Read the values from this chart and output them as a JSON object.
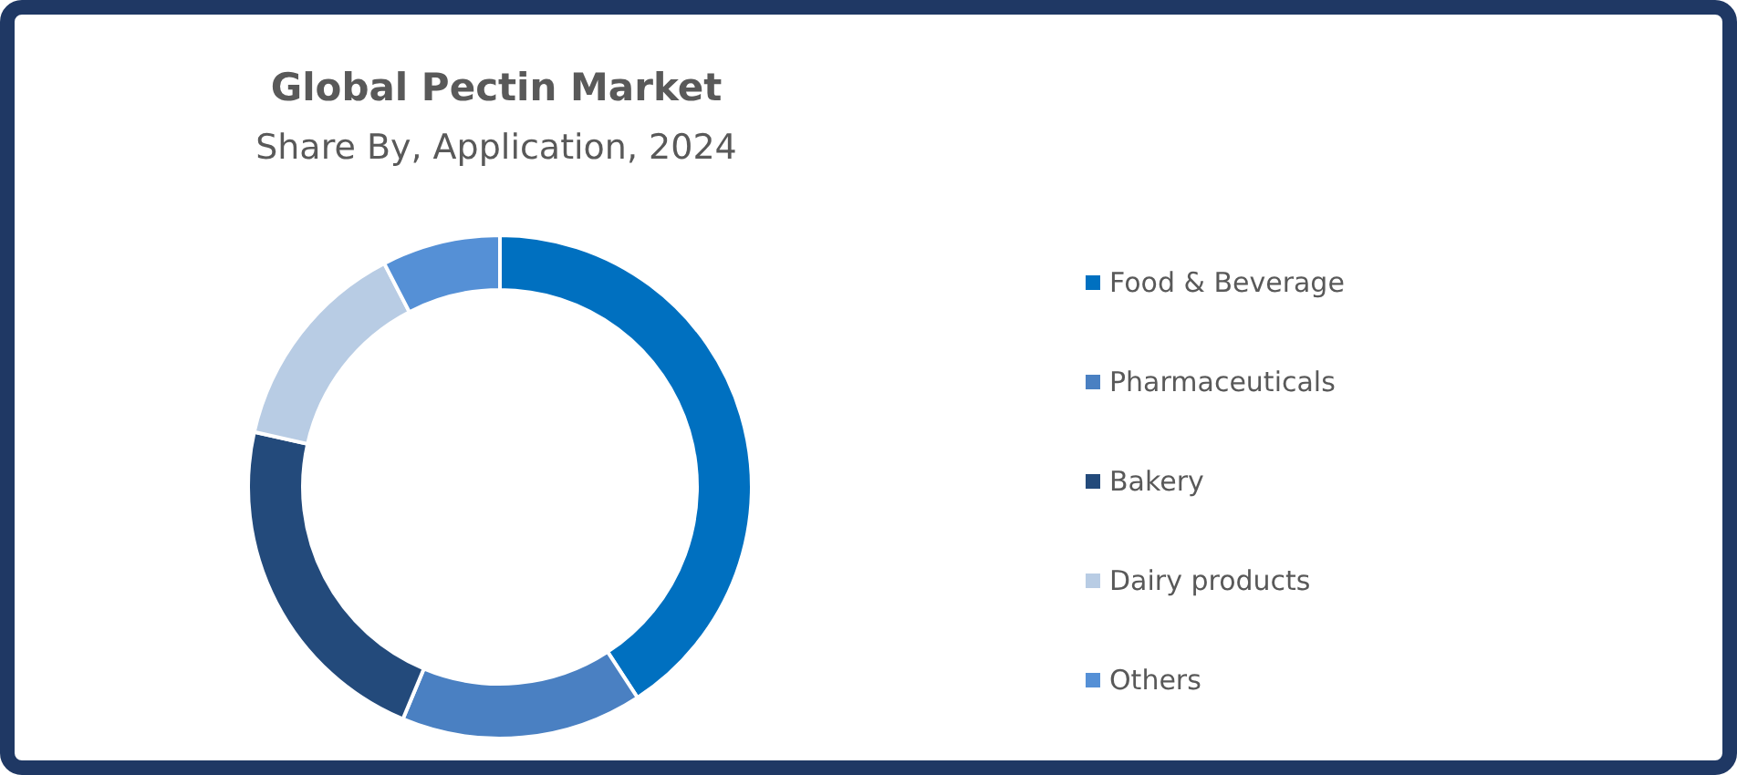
{
  "chart_data": {
    "type": "donut",
    "title": "Global Pectin Market",
    "subtitle": "Share By, Application, 2024",
    "categories": [
      "Food & Beverage",
      "Pharmaceuticals",
      "Bakery",
      "Dairy products",
      "Others"
    ],
    "values": [
      40.8,
      15.5,
      22.2,
      13.9,
      7.6
    ],
    "colors": [
      "#0070c0",
      "#4a80c2",
      "#234a7b",
      "#b8cce4",
      "#5590d6"
    ],
    "legend": "right"
  }
}
